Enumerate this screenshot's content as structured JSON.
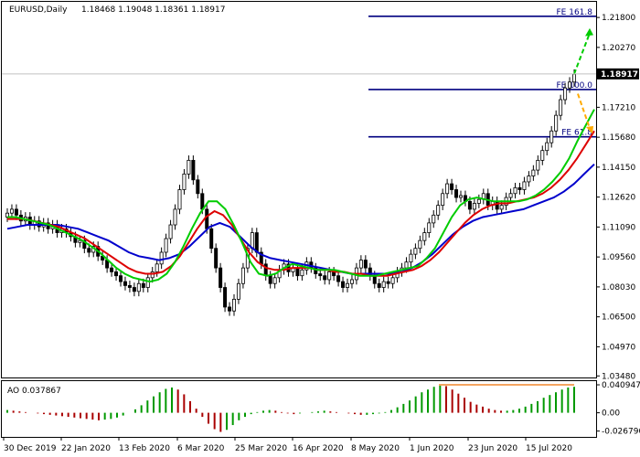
{
  "header": {
    "symbol_label": "EURUSD,Daily",
    "ohlc": "1.18468 1.19048 1.18361 1.18917"
  },
  "indicator": {
    "label": "AO 0.037867"
  },
  "colors": {
    "up_candle": "#ffffff",
    "candle_outline": "#000000",
    "ma_green": "#00cc00",
    "ma_red": "#dd0000",
    "ma_blue": "#0000cc",
    "fib_line": "#000080",
    "arrow_green": "#00cc00",
    "arrow_orange": "#ffaa00",
    "ao_up": "#009900",
    "ao_down": "#aa0000",
    "ao_level_line": "#f4a460",
    "current_price_bg": "#000000",
    "current_price_text": "#ffffff"
  },
  "chart_data": {
    "type": "candlestick",
    "price_axis": {
      "ticks": [
        "1.21800",
        "1.20270",
        "1.17210",
        "1.15680",
        "1.14150",
        "1.12620",
        "1.11090",
        "1.09560",
        "1.08030",
        "1.06500",
        "1.04970",
        "1.03480"
      ],
      "current_price": "1.18917",
      "range": [
        1.034,
        1.226
      ]
    },
    "time_axis": {
      "labels": [
        "30 Dec 2019",
        "22 Jan 2020",
        "13 Feb 2020",
        "6 Mar 2020",
        "25 Mar 2020",
        "16 Apr 2020",
        "8 May 2020",
        "1 Jun 2020",
        "23 Jun 2020",
        "15 Jul 2020"
      ]
    },
    "fib_levels": [
      {
        "label": "FE 161.8",
        "price": 1.2186
      },
      {
        "label": "FE 100.0",
        "price": 1.1812
      },
      {
        "label": "FE 61.8",
        "price": 1.157
      }
    ],
    "price_series": [
      1.118,
      1.12,
      1.117,
      1.114,
      1.116,
      1.112,
      1.114,
      1.111,
      1.113,
      1.11,
      1.112,
      1.108,
      1.11,
      1.108,
      1.106,
      1.103,
      1.104,
      1.1,
      1.098,
      1.101,
      1.096,
      1.094,
      1.09,
      1.088,
      1.086,
      1.083,
      1.081,
      1.08,
      1.078,
      1.082,
      1.08,
      1.085,
      1.088,
      1.092,
      1.098,
      1.105,
      1.112,
      1.12,
      1.13,
      1.138,
      1.145,
      1.135,
      1.128,
      1.12,
      1.11,
      1.1,
      1.09,
      1.08,
      1.07,
      1.068,
      1.074,
      1.082,
      1.09,
      1.1,
      1.108,
      1.098,
      1.092,
      1.086,
      1.082,
      1.085,
      1.089,
      1.092,
      1.088,
      1.09,
      1.086,
      1.089,
      1.093,
      1.09,
      1.087,
      1.086,
      1.084,
      1.088,
      1.086,
      1.083,
      1.08,
      1.082,
      1.084,
      1.09,
      1.094,
      1.09,
      1.086,
      1.082,
      1.08,
      1.083,
      1.082,
      1.085,
      1.088,
      1.09,
      1.093,
      1.097,
      1.1,
      1.104,
      1.108,
      1.113,
      1.117,
      1.122,
      1.128,
      1.133,
      1.13,
      1.126,
      1.127,
      1.124,
      1.12,
      1.123,
      1.125,
      1.128,
      1.122,
      1.124,
      1.12,
      1.122,
      1.126,
      1.128,
      1.131,
      1.13,
      1.134,
      1.137,
      1.14,
      1.145,
      1.15,
      1.154,
      1.16,
      1.168,
      1.176,
      1.182,
      1.185,
      1.189
    ],
    "ma_green": [
      1.116,
      1.116,
      1.115,
      1.114,
      1.113,
      1.112,
      1.11,
      1.108,
      1.106,
      1.104,
      1.101,
      1.098,
      1.094,
      1.09,
      1.087,
      1.085,
      1.084,
      1.083,
      1.084,
      1.087,
      1.093,
      1.101,
      1.11,
      1.118,
      1.124,
      1.124,
      1.12,
      1.112,
      1.103,
      1.093,
      1.087,
      1.086,
      1.087,
      1.09,
      1.092,
      1.091,
      1.09,
      1.089,
      1.089,
      1.089,
      1.088,
      1.087,
      1.086,
      1.086,
      1.086,
      1.087,
      1.088,
      1.089,
      1.09,
      1.091,
      1.095,
      1.1,
      1.108,
      1.116,
      1.122,
      1.125,
      1.126,
      1.125,
      1.124,
      1.124,
      1.124,
      1.124,
      1.125,
      1.127,
      1.13,
      1.134,
      1.139,
      1.146,
      1.155,
      1.163,
      1.171
    ],
    "ma_red": [
      1.115,
      1.115,
      1.115,
      1.114,
      1.113,
      1.112,
      1.111,
      1.109,
      1.107,
      1.105,
      1.102,
      1.099,
      1.096,
      1.093,
      1.09,
      1.088,
      1.087,
      1.087,
      1.088,
      1.091,
      1.096,
      1.103,
      1.11,
      1.116,
      1.119,
      1.117,
      1.112,
      1.105,
      1.098,
      1.093,
      1.09,
      1.089,
      1.089,
      1.09,
      1.09,
      1.09,
      1.089,
      1.089,
      1.088,
      1.088,
      1.087,
      1.087,
      1.086,
      1.086,
      1.086,
      1.087,
      1.088,
      1.089,
      1.091,
      1.094,
      1.098,
      1.103,
      1.108,
      1.113,
      1.117,
      1.12,
      1.122,
      1.123,
      1.123,
      1.124,
      1.125,
      1.126,
      1.128,
      1.131,
      1.135,
      1.14,
      1.146,
      1.153,
      1.16
    ],
    "ma_blue": [
      1.11,
      1.111,
      1.112,
      1.112,
      1.112,
      1.112,
      1.111,
      1.11,
      1.108,
      1.106,
      1.104,
      1.101,
      1.098,
      1.096,
      1.095,
      1.094,
      1.095,
      1.097,
      1.101,
      1.106,
      1.111,
      1.113,
      1.111,
      1.106,
      1.101,
      1.097,
      1.095,
      1.094,
      1.093,
      1.092,
      1.091,
      1.09,
      1.089,
      1.088,
      1.087,
      1.087,
      1.087,
      1.087,
      1.087,
      1.088,
      1.09,
      1.093,
      1.097,
      1.102,
      1.107,
      1.111,
      1.114,
      1.116,
      1.117,
      1.118,
      1.119,
      1.12,
      1.122,
      1.124,
      1.126,
      1.129,
      1.133,
      1.138,
      1.143
    ],
    "ao": {
      "ticks": [
        "0.040947",
        "0.00",
        "-0.026790"
      ],
      "range": [
        -0.034,
        0.045
      ],
      "values": [
        0.004,
        0.003,
        0.002,
        0.001,
        0.0,
        -0.001,
        -0.002,
        -0.003,
        -0.004,
        -0.005,
        -0.006,
        -0.007,
        -0.008,
        -0.009,
        -0.01,
        -0.011,
        -0.01,
        -0.009,
        -0.007,
        -0.004,
        0.0,
        0.005,
        0.011,
        0.018,
        0.024,
        0.03,
        0.035,
        0.037,
        0.034,
        0.027,
        0.017,
        0.006,
        -0.006,
        -0.016,
        -0.024,
        -0.028,
        -0.025,
        -0.018,
        -0.011,
        -0.006,
        -0.002,
        0.001,
        0.003,
        0.004,
        0.003,
        0.001,
        -0.001,
        -0.002,
        -0.001,
        0.0,
        0.001,
        0.002,
        0.003,
        0.002,
        0.001,
        0.0,
        -0.001,
        -0.002,
        -0.003,
        -0.003,
        -0.002,
        -0.001,
        0.001,
        0.004,
        0.008,
        0.013,
        0.018,
        0.024,
        0.03,
        0.034,
        0.038,
        0.041,
        0.039,
        0.034,
        0.028,
        0.022,
        0.016,
        0.012,
        0.009,
        0.006,
        0.004,
        0.003,
        0.003,
        0.004,
        0.006,
        0.009,
        0.013,
        0.017,
        0.022,
        0.026,
        0.03,
        0.034,
        0.037,
        0.038
      ],
      "level_line": 0.040947
    }
  }
}
